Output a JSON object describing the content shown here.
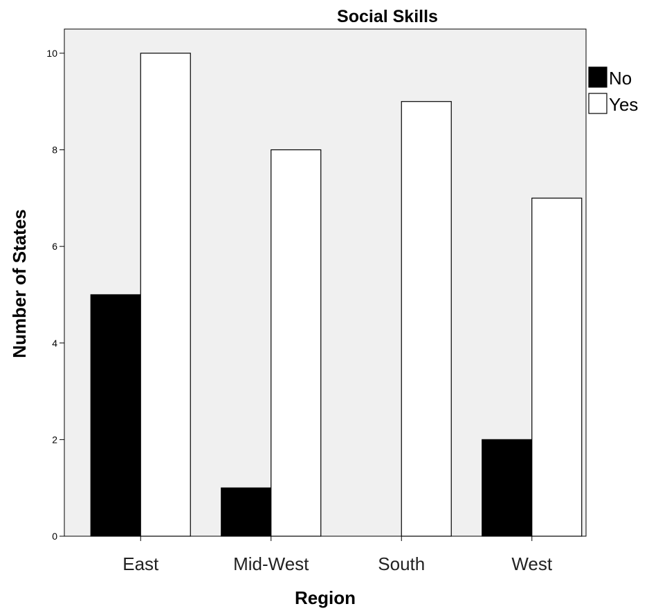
{
  "chart_data": {
    "type": "bar",
    "title": "Social Skills",
    "xlabel": "Region",
    "ylabel": "Number of States",
    "categories": [
      "East",
      "Mid-West",
      "South",
      "West"
    ],
    "series": [
      {
        "name": "No",
        "values": [
          5,
          1,
          0,
          2
        ],
        "color": "#000000"
      },
      {
        "name": "Yes",
        "values": [
          10,
          8,
          9,
          7
        ],
        "color": "#ffffff"
      }
    ],
    "ylim": [
      0,
      10.5
    ],
    "yticks": [
      0,
      2,
      4,
      6,
      8,
      10
    ],
    "grid": false,
    "legend_position": "top-right",
    "plot_background": "#f0f0f0"
  }
}
